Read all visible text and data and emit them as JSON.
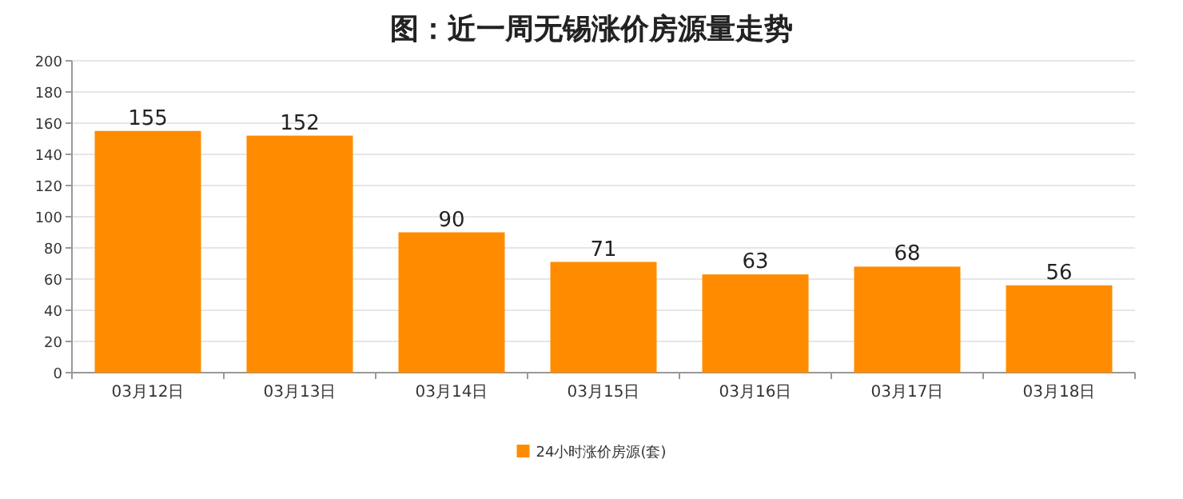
{
  "chart_data": {
    "type": "bar",
    "title": "图：近一周无锡涨价房源量走势",
    "categories": [
      "03月12日",
      "03月13日",
      "03月14日",
      "03月15日",
      "03月16日",
      "03月17日",
      "03月18日"
    ],
    "series": [
      {
        "name": "24小时涨价房源(套)",
        "color": "#ff8c00",
        "values": [
          155,
          152,
          90,
          71,
          63,
          68,
          56
        ]
      }
    ],
    "ylim": [
      0,
      200
    ],
    "yticks": [
      0,
      20,
      40,
      60,
      80,
      100,
      120,
      140,
      160,
      180,
      200
    ],
    "grid": "y",
    "legend": "bottom",
    "data_labels": true
  }
}
